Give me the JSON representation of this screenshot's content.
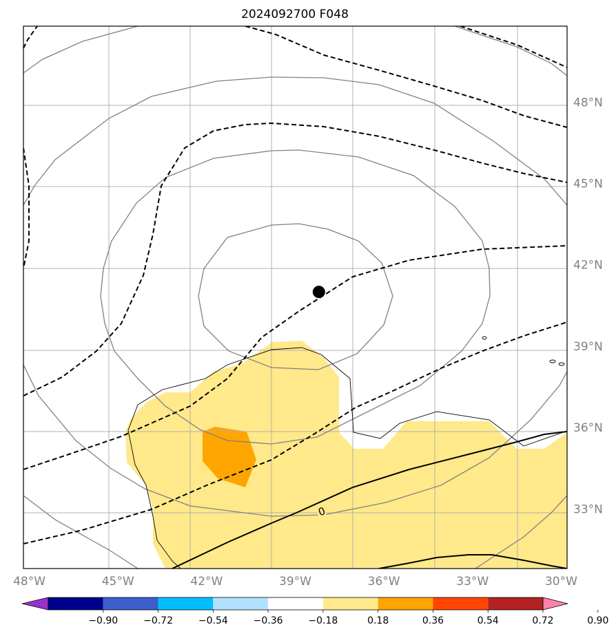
{
  "title": "2024092700 F048",
  "map": {
    "lon_range": [
      -48.2,
      -29.8
    ],
    "lat_range": [
      30.8,
      50.8
    ],
    "lon_ticks": [
      {
        "value": -48,
        "label": "48°W"
      },
      {
        "value": -45,
        "label": "45°W"
      },
      {
        "value": -42,
        "label": "42°W"
      },
      {
        "value": -39,
        "label": "39°W"
      },
      {
        "value": -36,
        "label": "36°W"
      },
      {
        "value": -33,
        "label": "33°W"
      },
      {
        "value": -30,
        "label": "30°W"
      }
    ],
    "lat_ticks": [
      {
        "value": 33,
        "label": "33°N"
      },
      {
        "value": 36,
        "label": "36°N"
      },
      {
        "value": 39,
        "label": "39°N"
      },
      {
        "value": 42,
        "label": "42°N"
      },
      {
        "value": 45,
        "label": "45°N"
      },
      {
        "value": 48,
        "label": "48°N"
      }
    ],
    "grid": true,
    "storm_center": {
      "lon": -38.2,
      "lat": 41.0,
      "color": "#000000"
    },
    "contour_labels": [
      {
        "text": "0",
        "lon": -38.1,
        "lat": 32.9
      }
    ]
  },
  "colorbar": {
    "levels": [
      "−0.90",
      "−0.72",
      "−0.54",
      "−0.36",
      "−0.18",
      "0.18",
      "0.36",
      "0.54",
      "0.72",
      "0.90"
    ],
    "colors": [
      "#9932cc",
      "#00008b",
      "#3a5fcd",
      "#00bfff",
      "#b0e2ff",
      "#ffffff",
      "#ffe98a",
      "#ffa500",
      "#ff4500",
      "#b22222",
      "#ff82ab"
    ],
    "extend": "both"
  },
  "colors": {
    "fill_weak": "#ffe98a",
    "fill_strong": "#ffa500",
    "mslp_contour": "#808080",
    "thickness_contour": "#000000",
    "grid": "#b0b0b0"
  }
}
